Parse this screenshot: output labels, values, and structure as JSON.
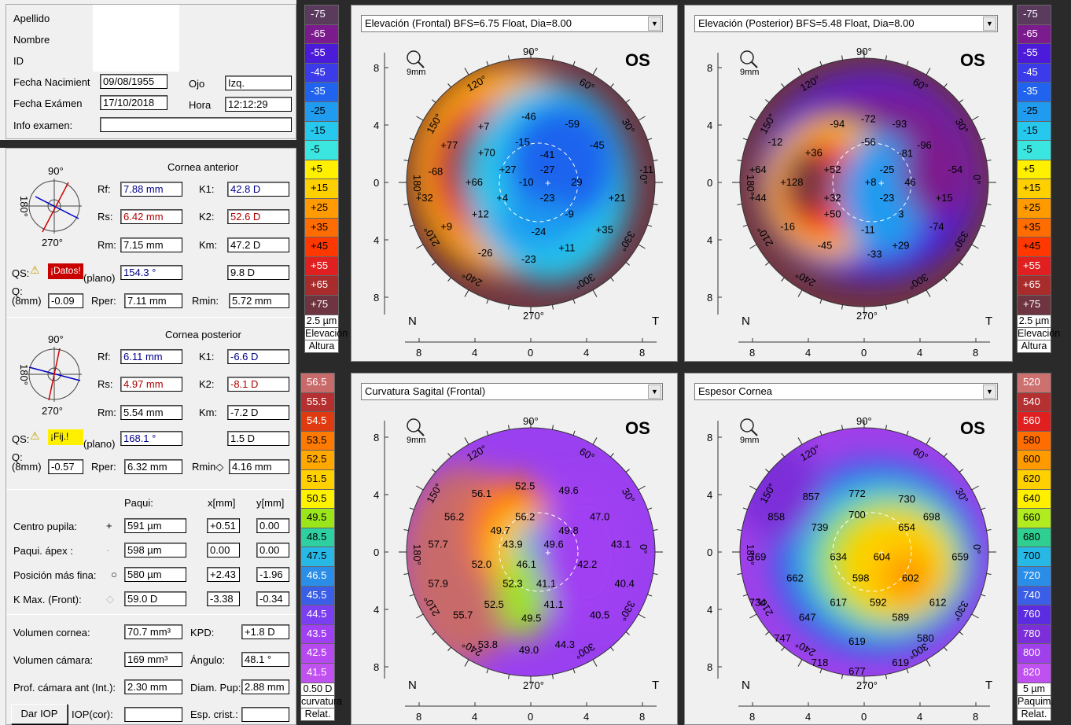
{
  "patient": {
    "apellido_label": "Apellido",
    "nombre_label": "Nombre",
    "id_label": "ID",
    "birth_label": "Fecha Nacimient",
    "birth_value": "09/08/1955",
    "eye_label": "Ojo",
    "eye_value": "Izq.",
    "exam_label": "Fecha Exámen",
    "exam_value": "17/10/2018",
    "time_label": "Hora",
    "time_value": "12:12:29",
    "info_label": "Info examen:",
    "info_value": ""
  },
  "anterior": {
    "title": "Cornea anterior",
    "rf_label": "Rf:",
    "rf": "7.88 mm",
    "rs_label": "Rs:",
    "rs": "6.42 mm",
    "rm_label": "Rm:",
    "rm": "7.15 mm",
    "k1_label": "K1:",
    "k1": "42.8 D",
    "k2_label": "K2:",
    "k2": "52.6 D",
    "km_label": "Km:",
    "km": "47.2 D",
    "qs_label": "QS:",
    "qs_badge": "¡Datos!",
    "plano": "(plano)",
    "axis": "154.3 °",
    "cyl": "9.8 D",
    "q_label": "Q:\n(8mm)",
    "q": "-0.09",
    "rper_label": "Rper:",
    "rper": "7.11 mm",
    "rmin_label": "Rmin:",
    "rmin": "5.72 mm",
    "deg90": "90°",
    "deg180": "180°",
    "deg270": "270°"
  },
  "posterior": {
    "title": "Cornea posterior",
    "rf_label": "Rf:",
    "rf": "6.11 mm",
    "rs_label": "Rs:",
    "rs": "4.97 mm",
    "rm_label": "Rm:",
    "rm": "5.54 mm",
    "k1_label": "K1:",
    "k1": "-6.6 D",
    "k2_label": "K2:",
    "k2": "-8.1 D",
    "km_label": "Km:",
    "km": "-7.2 D",
    "qs_label": "QS:",
    "qs_badge": "¡Fij.!",
    "plano": "(plano)",
    "axis": "168.1 °",
    "cyl": "1.5 D",
    "q_label": "Q:\n(8mm)",
    "q": "-0.57",
    "rper_label": "Rper:",
    "rper": "6.32 mm",
    "rmin_label": "Rmin◇",
    "rmin": "4.16 mm",
    "deg90": "90°",
    "deg180": "180°",
    "deg270": "270°"
  },
  "pachy": {
    "col_paqui": "Paqui:",
    "col_x": "x[mm]",
    "col_y": "y[mm]",
    "rows": [
      {
        "label": "Centro pupila:",
        "sym": "+",
        "paqui": "591 µm",
        "x": "+0.51",
        "y": "0.00"
      },
      {
        "label": "Paqui. ápex :",
        "sym": "·",
        "paqui": "598 µm",
        "x": "0.00",
        "y": "0.00"
      },
      {
        "label": "Posición más fina:",
        "sym": "○",
        "paqui": "580 µm",
        "x": "+2.43",
        "y": "-1.96"
      },
      {
        "label": "K Max. (Front):",
        "sym": "◇",
        "paqui": "59.0 D",
        "x": "-3.38",
        "y": "-0.34"
      }
    ]
  },
  "volumes": {
    "vol_cornea_label": "Volumen cornea:",
    "vol_cornea": "70.7 mm³",
    "kpd_label": "KPD:",
    "kpd": "+1.8 D",
    "vol_camara_label": "Volumen cámara:",
    "vol_camara": "169 mm³",
    "angulo_label": "Ángulo:",
    "angulo": "48.1 °",
    "prof_label": "Prof. cámara ant (Int.):",
    "prof": "2.30 mm",
    "diam_label": "Diam. Pup:",
    "diam": "2.88 mm",
    "dar_iop": "Dar IOP",
    "iop_label": "IOP(cor):",
    "iop": "",
    "esp_label": "Esp. crist.:",
    "esp": ""
  },
  "maps": {
    "elev_front": {
      "title": "Elevación (Frontal)  BFS=6.75 Float, Dia=8.00",
      "eye": "OS"
    },
    "elev_post": {
      "title": "Elevación (Posterior)  BFS=5.48 Float, Dia=8.00",
      "eye": "OS"
    },
    "curv": {
      "title": "Curvatura Sagital (Frontal)",
      "eye": "OS"
    },
    "thick": {
      "title": "Espesor Cornea",
      "eye": "OS"
    },
    "zoom_label": "9mm",
    "nasal": "N",
    "temporal": "T",
    "axis_ticks": [
      "8",
      "4",
      "0",
      "4",
      "8"
    ],
    "vaxis_ticks": [
      "8",
      "4",
      "0",
      "4",
      "8"
    ],
    "deg": [
      "90°",
      "60°",
      "30°",
      "0°",
      "330°",
      "300°",
      "270°",
      "240°",
      "210°",
      "180°",
      "150°",
      "120°"
    ]
  },
  "scales": {
    "elev_left": {
      "steps": [
        "-75",
        "-65",
        "-55",
        "-45",
        "-35",
        "-25",
        "-15",
        "-5",
        "+5",
        "+15",
        "+25",
        "+35",
        "+45",
        "+55",
        "+65",
        "+75"
      ],
      "unit": "2.5 µm",
      "l1": "Elevación",
      "l2": "Altura"
    },
    "elev_right": {
      "steps": [
        "-75",
        "-65",
        "-55",
        "-45",
        "-35",
        "-25",
        "-15",
        "-5",
        "+5",
        "+15",
        "+25",
        "+35",
        "+45",
        "+55",
        "+65",
        "+75"
      ],
      "unit": "2.5 µm",
      "l1": "Elevación",
      "l2": "Altura"
    },
    "curv": {
      "steps": [
        "56.5",
        "55.5",
        "54.5",
        "53.5",
        "52.5",
        "51.5",
        "50.5",
        "49.5",
        "48.5",
        "47.5",
        "46.5",
        "45.5",
        "44.5",
        "43.5",
        "42.5",
        "41.5"
      ],
      "unit": "0.50 D",
      "l1": "curvatura",
      "l2": "Relat."
    },
    "thick": {
      "steps": [
        "520",
        "540",
        "560",
        "580",
        "600",
        "620",
        "640",
        "660",
        "680",
        "700",
        "720",
        "740",
        "760",
        "780",
        "800",
        "820"
      ],
      "unit": "5 µm",
      "l1": "Paquim.",
      "l2": "Relat."
    }
  },
  "map_values": {
    "elev_front": [
      "-46",
      "-59",
      "+7",
      "-15",
      "-45",
      "+77",
      "+70",
      "-41",
      "-68",
      "+27",
      "-27",
      "-11",
      "+66",
      "-10",
      "29",
      "+32",
      "+4",
      "-23",
      "+21",
      "+12",
      "-9",
      "+9",
      "-24",
      "+35",
      "-26",
      "+11",
      "-23"
    ],
    "elev_post": [
      "-94",
      "-72",
      "-93",
      "-12",
      "-56",
      "-96",
      "+36",
      "-81",
      "+64",
      "+52",
      "-25",
      "-54",
      "+128",
      "+8",
      "46",
      "+44",
      "+32",
      "-23",
      "+15",
      "+50",
      "3",
      "-16",
      "-11",
      "-74",
      "-45",
      "-33",
      "+29"
    ],
    "curv": [
      "52.5",
      "49.6",
      "56.1",
      "56.2",
      "47.0",
      "56.2",
      "49.7",
      "49.8",
      "57.7",
      "43.9",
      "49.6",
      "43.1",
      "52.0",
      "46.1",
      "42.2",
      "57.9",
      "52.3",
      "41.1",
      "40.4",
      "52.5",
      "41.1",
      "55.7",
      "49.5",
      "40.5",
      "53.8",
      "44.3",
      "49.0"
    ],
    "thick": [
      "857",
      "772",
      "730",
      "700",
      "858",
      "698",
      "739",
      "654",
      "769",
      "634",
      "604",
      "659",
      "662",
      "598",
      "602",
      "734",
      "617",
      "592",
      "612",
      "647",
      "589",
      "747",
      "619",
      "580",
      "718",
      "619",
      "677"
    ]
  },
  "colors": {
    "elev": [
      "#5a3b5e",
      "#7c1b8e",
      "#4b1bd9",
      "#3b3bea",
      "#1f63ee",
      "#1f9bf0",
      "#27c8ee",
      "#3be6e0",
      "#fff000",
      "#ffd000",
      "#ff9b00",
      "#ff6c00",
      "#ff3800",
      "#e02020",
      "#a82c2c",
      "#6e3540"
    ],
    "curv": [
      "#c86a6a",
      "#b53030",
      "#e03b10",
      "#ff7a00",
      "#ffa800",
      "#ffd000",
      "#fff200",
      "#9be51b",
      "#2ecfa0",
      "#28b8e6",
      "#2a8de8",
      "#3a5fe6",
      "#7a3ff0",
      "#a040f2",
      "#b648f0",
      "#c050f0"
    ],
    "thick": [
      "#cc7070",
      "#b53030",
      "#e02020",
      "#ff6c00",
      "#ff9b00",
      "#ffd000",
      "#fff000",
      "#b0ec20",
      "#2ecf90",
      "#28b8e6",
      "#2a8de8",
      "#3a5fe6",
      "#5b2ce0",
      "#7c2fd8",
      "#a040ea",
      "#c050f0"
    ]
  }
}
